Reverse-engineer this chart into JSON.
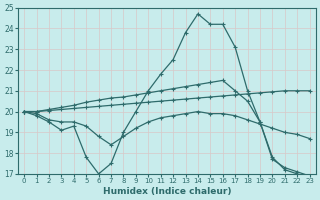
{
  "xlabel": "Humidex (Indice chaleur)",
  "xlim": [
    -0.5,
    23.5
  ],
  "ylim": [
    17,
    25
  ],
  "yticks": [
    17,
    18,
    19,
    20,
    21,
    22,
    23,
    24,
    25
  ],
  "xticks": [
    0,
    1,
    2,
    3,
    4,
    5,
    6,
    7,
    8,
    9,
    10,
    11,
    12,
    13,
    14,
    15,
    16,
    17,
    18,
    19,
    20,
    21,
    22,
    23
  ],
  "bg_color": "#c8ecec",
  "grid_color": "#b8d8d8",
  "line_color": "#2e6b6b",
  "series": [
    [
      20.0,
      19.8,
      19.5,
      19.1,
      19.3,
      17.8,
      17.0,
      17.5,
      19.0,
      20.0,
      21.0,
      21.8,
      22.5,
      23.8,
      24.7,
      24.2,
      24.2,
      23.1,
      21.0,
      19.5,
      17.8,
      17.2,
      17.0,
      16.8
    ],
    [
      20.0,
      19.9,
      19.6,
      19.5,
      19.5,
      19.3,
      18.8,
      18.4,
      18.8,
      19.2,
      19.5,
      19.7,
      19.8,
      19.9,
      20.0,
      19.9,
      19.9,
      19.8,
      19.6,
      19.4,
      19.2,
      19.0,
      18.9,
      18.7
    ],
    [
      20.0,
      20.0,
      20.05,
      20.1,
      20.15,
      20.2,
      20.25,
      20.3,
      20.35,
      20.4,
      20.45,
      20.5,
      20.55,
      20.6,
      20.65,
      20.7,
      20.75,
      20.8,
      20.85,
      20.9,
      20.95,
      21.0,
      21.0,
      21.0
    ],
    [
      20.0,
      20.0,
      20.1,
      20.2,
      20.3,
      20.45,
      20.55,
      20.65,
      20.7,
      20.8,
      20.9,
      21.0,
      21.1,
      21.2,
      21.3,
      21.4,
      21.5,
      21.0,
      20.5,
      19.5,
      17.7,
      17.3,
      17.1,
      16.9
    ]
  ]
}
